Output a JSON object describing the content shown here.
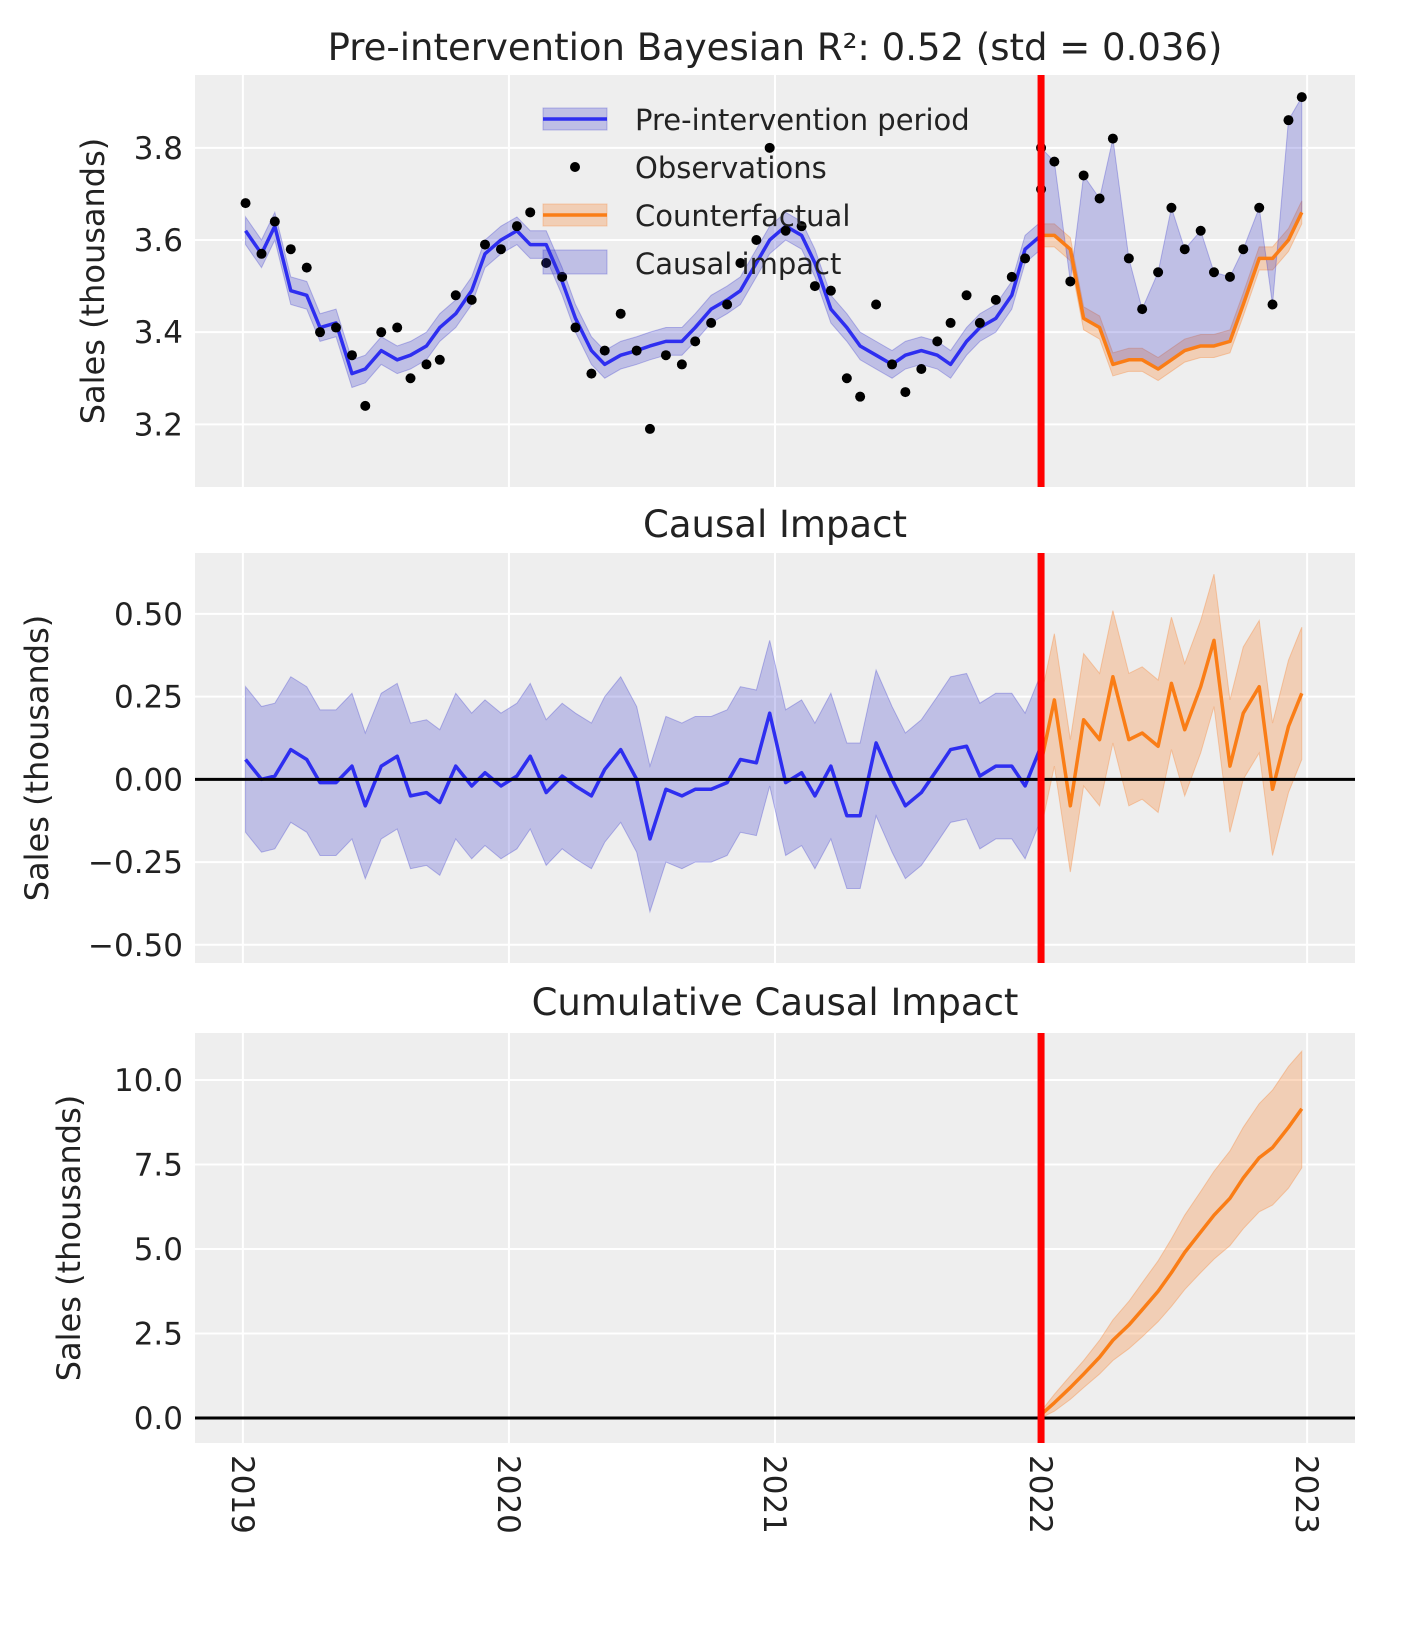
{
  "colors": {
    "pre": "#2e2ef0",
    "pre_band": "#3333cc",
    "post": "#fa7d16",
    "post_band": "#f5924a",
    "intervention": "#ff0000",
    "observations": "#000000",
    "background": "#eeeeee"
  },
  "chart_data": [
    {
      "type": "line",
      "title": "Pre-intervention Bayesian R²: 0.52 (std = 0.036)",
      "ylabel": "Sales (thousands)",
      "xlim": [
        2018.82,
        2023.18
      ],
      "ylim": [
        3.064,
        3.958
      ],
      "yticks": [
        3.2,
        3.4,
        3.6,
        3.8
      ],
      "ytick_labels": [
        "3.2",
        "3.4",
        "3.6",
        "3.8"
      ],
      "intervention": 2022.0,
      "grid": true,
      "legend": {
        "placement": "top-center",
        "entries": [
          "Pre-intervention period",
          "Observations",
          "Counterfactual",
          "Causal impact"
        ]
      },
      "pre": {
        "x": [
          2019.01,
          2019.07,
          2019.12,
          2019.18,
          2019.24,
          2019.29,
          2019.35,
          2019.41,
          2019.46,
          2019.52,
          2019.58,
          2019.63,
          2019.69,
          2019.74,
          2019.8,
          2019.86,
          2019.91,
          2019.97,
          2020.03,
          2020.08,
          2020.14,
          2020.2,
          2020.25,
          2020.31,
          2020.36,
          2020.42,
          2020.48,
          2020.53,
          2020.59,
          2020.65,
          2020.7,
          2020.76,
          2020.82,
          2020.87,
          2020.93,
          2020.98,
          2021.04,
          2021.1,
          2021.15,
          2021.21,
          2021.27,
          2021.32,
          2021.38,
          2021.44,
          2021.49,
          2021.55,
          2021.61,
          2021.66,
          2021.72,
          2021.77,
          2021.83,
          2021.89,
          2021.94,
          2022.0
        ],
        "mean": [
          3.62,
          3.57,
          3.63,
          3.49,
          3.48,
          3.41,
          3.42,
          3.31,
          3.32,
          3.36,
          3.34,
          3.35,
          3.37,
          3.41,
          3.44,
          3.49,
          3.57,
          3.6,
          3.62,
          3.59,
          3.59,
          3.51,
          3.43,
          3.36,
          3.33,
          3.35,
          3.36,
          3.37,
          3.38,
          3.38,
          3.41,
          3.45,
          3.47,
          3.49,
          3.55,
          3.6,
          3.63,
          3.61,
          3.55,
          3.45,
          3.41,
          3.37,
          3.35,
          3.33,
          3.35,
          3.36,
          3.35,
          3.33,
          3.38,
          3.41,
          3.43,
          3.48,
          3.58,
          3.61
        ],
        "band_halfwidth": 0.03,
        "observations": [
          3.68,
          3.57,
          3.64,
          3.58,
          3.54,
          3.4,
          3.41,
          3.35,
          3.24,
          3.4,
          3.41,
          3.3,
          3.33,
          3.34,
          3.48,
          3.47,
          3.59,
          3.58,
          3.63,
          3.66,
          3.55,
          3.52,
          3.41,
          3.31,
          3.36,
          3.44,
          3.36,
          3.19,
          3.35,
          3.33,
          3.38,
          3.42,
          3.46,
          3.55,
          3.6,
          3.8,
          3.62,
          3.63,
          3.5,
          3.49,
          3.3,
          3.26,
          3.46,
          3.33,
          3.27,
          3.32,
          3.38,
          3.42,
          3.48,
          3.42,
          3.47,
          3.52,
          3.56,
          3.71
        ]
      },
      "post": {
        "x": [
          2022.0,
          2022.05,
          2022.11,
          2022.16,
          2022.22,
          2022.27,
          2022.33,
          2022.38,
          2022.44,
          2022.49,
          2022.54,
          2022.6,
          2022.65,
          2022.71,
          2022.76,
          2022.82,
          2022.87,
          2022.93,
          2022.98
        ],
        "counterfactual": [
          3.61,
          3.61,
          3.58,
          3.43,
          3.41,
          3.33,
          3.34,
          3.34,
          3.32,
          3.34,
          3.36,
          3.37,
          3.37,
          3.38,
          3.46,
          3.56,
          3.56,
          3.6,
          3.66
        ],
        "band_halfwidth": 0.025,
        "observations": [
          3.8,
          3.77,
          3.51,
          3.74,
          3.69,
          3.82,
          3.56,
          3.45,
          3.53,
          3.67,
          3.58,
          3.62,
          3.53,
          3.52,
          3.58,
          3.67,
          3.46,
          3.86,
          3.91
        ]
      }
    },
    {
      "type": "line",
      "title": "Causal Impact",
      "ylabel": "Sales (thousands)",
      "xlim": [
        2018.82,
        2023.18
      ],
      "ylim": [
        -0.555,
        0.684
      ],
      "yticks": [
        -0.5,
        -0.25,
        0,
        0.25,
        0.5
      ],
      "ytick_labels": [
        "−0.50",
        "−0.25",
        "0.00",
        "0.25",
        "0.50"
      ],
      "intervention": 2022.0,
      "grid": true,
      "pre": {
        "band_halfwidth": 0.22
      },
      "post": {
        "impact": [
          0.05,
          0.24,
          -0.08,
          0.18,
          0.12,
          0.31,
          0.12,
          0.14,
          0.1,
          0.29,
          0.15,
          0.28,
          0.42,
          0.04,
          0.2,
          0.28,
          -0.03,
          0.16,
          0.26
        ],
        "band_halfwidth": 0.2
      }
    },
    {
      "type": "area",
      "title": "Cumulative Causal Impact",
      "ylabel": "Sales (thousands)",
      "xlim": [
        2018.82,
        2023.18
      ],
      "ylim": [
        -0.74,
        11.39
      ],
      "yticks": [
        0,
        2.5,
        5,
        7.5,
        10
      ],
      "ytick_labels": [
        "0.0",
        "2.5",
        "5.0",
        "7.5",
        "10.0"
      ],
      "xticks": [
        2019,
        2020,
        2021,
        2022,
        2023
      ],
      "xtick_labels": [
        "2019",
        "2020",
        "2021",
        "2022",
        "2023"
      ],
      "intervention": 2022.0,
      "grid": true,
      "post": {
        "cumulative": [
          0.1,
          0.45,
          0.9,
          1.3,
          1.8,
          2.3,
          2.75,
          3.2,
          3.75,
          4.3,
          4.9,
          5.5,
          6.0,
          6.5,
          7.1,
          7.7,
          8.0,
          8.6,
          9.15
        ],
        "lower": [
          0.0,
          0.2,
          0.55,
          0.9,
          1.3,
          1.7,
          2.05,
          2.4,
          2.85,
          3.3,
          3.8,
          4.3,
          4.7,
          5.1,
          5.6,
          6.1,
          6.3,
          6.8,
          7.4
        ],
        "upper": [
          0.2,
          0.7,
          1.25,
          1.7,
          2.3,
          2.9,
          3.45,
          4.0,
          4.65,
          5.3,
          6.0,
          6.7,
          7.3,
          7.9,
          8.6,
          9.3,
          9.7,
          10.4,
          10.85
        ]
      }
    }
  ]
}
